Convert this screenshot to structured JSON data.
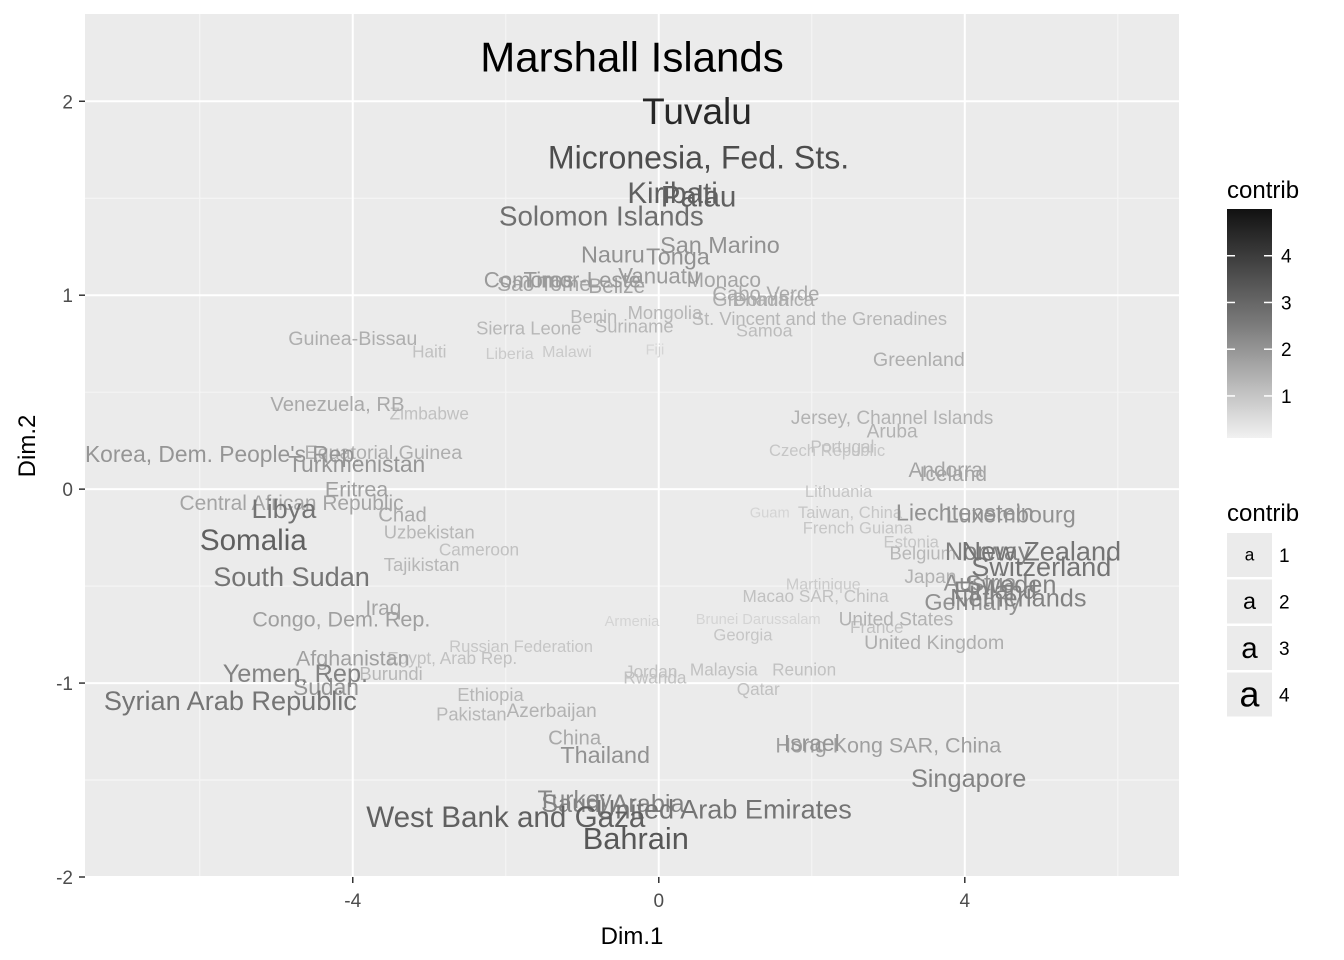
{
  "chart_data": {
    "type": "scatter",
    "xlabel": "Dim.1",
    "ylabel": "Dim.2",
    "xlim": [
      -7.5,
      6.8
    ],
    "ylim": [
      -2.0,
      2.45
    ],
    "x_ticks": [
      "-4",
      "0",
      "4"
    ],
    "y_ticks": [
      "2",
      "1",
      "0",
      "-1",
      "-2"
    ],
    "grid": true,
    "legend": {
      "position": "right",
      "colorbar": {
        "title": "contrib",
        "ticks": [
          "4",
          "3",
          "2",
          "1"
        ]
      },
      "size": {
        "title": "contrib",
        "key_glyph": "a",
        "labels": [
          "1",
          "2",
          "3",
          "4"
        ]
      }
    },
    "points": [
      {
        "label": "Marshall Islands",
        "x": -0.35,
        "y": 2.23,
        "contrib": 5.0
      },
      {
        "label": "Tuvalu",
        "x": 0.5,
        "y": 1.95,
        "contrib": 4.2
      },
      {
        "label": "Micronesia, Fed. Sts.",
        "x": 0.52,
        "y": 1.71,
        "contrib": 3.4
      },
      {
        "label": "Kiribati",
        "x": 0.18,
        "y": 1.53,
        "contrib": 3.0
      },
      {
        "label": "Palau",
        "x": 0.52,
        "y": 1.51,
        "contrib": 3.0
      },
      {
        "label": "Solomon Islands",
        "x": -0.75,
        "y": 1.41,
        "contrib": 2.7
      },
      {
        "label": "San Marino",
        "x": 0.8,
        "y": 1.26,
        "contrib": 2.0
      },
      {
        "label": "Nauru",
        "x": -0.6,
        "y": 1.21,
        "contrib": 2.0
      },
      {
        "label": "Tonga",
        "x": 0.25,
        "y": 1.2,
        "contrib": 2.0
      },
      {
        "label": "Timor-Leste",
        "x": -1.0,
        "y": 1.08,
        "contrib": 1.8
      },
      {
        "label": "Comoros",
        "x": -1.7,
        "y": 1.08,
        "contrib": 1.8
      },
      {
        "label": "Vanuatu",
        "x": 0.0,
        "y": 1.1,
        "contrib": 1.8
      },
      {
        "label": "Sao Tome",
        "x": -1.5,
        "y": 1.06,
        "contrib": 1.6
      },
      {
        "label": "Belize",
        "x": -0.55,
        "y": 1.05,
        "contrib": 1.6
      },
      {
        "label": "Monaco",
        "x": 0.85,
        "y": 1.08,
        "contrib": 1.6
      },
      {
        "label": "Cabo Verde",
        "x": 1.4,
        "y": 1.01,
        "contrib": 1.5
      },
      {
        "label": "Grenada",
        "x": 1.2,
        "y": 0.98,
        "contrib": 1.4
      },
      {
        "label": "Dominica",
        "x": 1.5,
        "y": 0.98,
        "contrib": 1.4
      },
      {
        "label": "Sierra Leone",
        "x": -1.7,
        "y": 0.83,
        "contrib": 1.2
      },
      {
        "label": "Suriname",
        "x": -0.32,
        "y": 0.84,
        "contrib": 1.2
      },
      {
        "label": "Benin",
        "x": -0.85,
        "y": 0.89,
        "contrib": 1.2
      },
      {
        "label": "Mongolia",
        "x": 0.08,
        "y": 0.91,
        "contrib": 1.2
      },
      {
        "label": "St. Vincent and the Grenadines",
        "x": 2.1,
        "y": 0.88,
        "contrib": 1.2
      },
      {
        "label": "Samoa",
        "x": 1.38,
        "y": 0.82,
        "contrib": 1.1
      },
      {
        "label": "Guinea-Bissau",
        "x": -4.0,
        "y": 0.78,
        "contrib": 1.4
      },
      {
        "label": "Haiti",
        "x": -3.0,
        "y": 0.71,
        "contrib": 1.0
      },
      {
        "label": "Liberia",
        "x": -1.95,
        "y": 0.7,
        "contrib": 0.8
      },
      {
        "label": "Malawi",
        "x": -1.2,
        "y": 0.71,
        "contrib": 0.8
      },
      {
        "label": "Fiji",
        "x": -0.05,
        "y": 0.72,
        "contrib": 0.6
      },
      {
        "label": "Greenland",
        "x": 3.4,
        "y": 0.67,
        "contrib": 1.4
      },
      {
        "label": "Venezuela, RB",
        "x": -4.2,
        "y": 0.44,
        "contrib": 1.5
      },
      {
        "label": "Zimbabwe",
        "x": -3.0,
        "y": 0.39,
        "contrib": 1.0
      },
      {
        "label": "Jersey, Channel Islands",
        "x": 3.05,
        "y": 0.37,
        "contrib": 1.3
      },
      {
        "label": "Aruba",
        "x": 3.05,
        "y": 0.3,
        "contrib": 1.3
      },
      {
        "label": "Portugal",
        "x": 2.4,
        "y": 0.22,
        "contrib": 1.0
      },
      {
        "label": "Czech Republic",
        "x": 2.2,
        "y": 0.2,
        "contrib": 0.9
      },
      {
        "label": "Korea, Dem. People's Rep.",
        "x": -5.7,
        "y": 0.18,
        "contrib": 1.9
      },
      {
        "label": "Equatorial Guinea",
        "x": -3.6,
        "y": 0.19,
        "contrib": 1.4
      },
      {
        "label": "Turkmenistan",
        "x": -3.95,
        "y": 0.13,
        "contrib": 1.9
      },
      {
        "label": "Andorra",
        "x": 3.75,
        "y": 0.1,
        "contrib": 1.6
      },
      {
        "label": "Iceland",
        "x": 3.85,
        "y": 0.08,
        "contrib": 1.6
      },
      {
        "label": "Eritrea",
        "x": -3.95,
        "y": 0.0,
        "contrib": 1.7
      },
      {
        "label": "Lithuania",
        "x": 2.35,
        "y": -0.01,
        "contrib": 0.9
      },
      {
        "label": "Central African Republic",
        "x": -4.8,
        "y": -0.07,
        "contrib": 1.6
      },
      {
        "label": "Libya",
        "x": -4.9,
        "y": -0.1,
        "contrib": 2.6
      },
      {
        "label": "Chad",
        "x": -3.35,
        "y": -0.13,
        "contrib": 1.5
      },
      {
        "label": "Liechtenstein",
        "x": 4.0,
        "y": -0.12,
        "contrib": 2.0
      },
      {
        "label": "Luxembourg",
        "x": 4.6,
        "y": -0.13,
        "contrib": 2.0
      },
      {
        "label": "Taiwan, China",
        "x": 2.5,
        "y": -0.12,
        "contrib": 0.9
      },
      {
        "label": "Guam",
        "x": 1.45,
        "y": -0.12,
        "contrib": 0.6
      },
      {
        "label": "Somalia",
        "x": -5.3,
        "y": -0.26,
        "contrib": 3.0
      },
      {
        "label": "Uzbekistan",
        "x": -3.0,
        "y": -0.22,
        "contrib": 1.2
      },
      {
        "label": "French Guiana",
        "x": 2.6,
        "y": -0.2,
        "contrib": 0.9
      },
      {
        "label": "Estonia",
        "x": 3.3,
        "y": -0.27,
        "contrib": 0.9
      },
      {
        "label": "Belgium",
        "x": 3.45,
        "y": -0.33,
        "contrib": 1.2
      },
      {
        "label": "New Zealand",
        "x": 5.0,
        "y": -0.32,
        "contrib": 2.6
      },
      {
        "label": "Norway",
        "x": 4.3,
        "y": -0.32,
        "contrib": 2.3
      },
      {
        "label": "Switzerland",
        "x": 5.0,
        "y": -0.4,
        "contrib": 2.6
      },
      {
        "label": "Cameroon",
        "x": -2.35,
        "y": -0.31,
        "contrib": 1.0
      },
      {
        "label": "Tajikistan",
        "x": -3.1,
        "y": -0.39,
        "contrib": 1.2
      },
      {
        "label": "Japan",
        "x": 3.55,
        "y": -0.45,
        "contrib": 1.3
      },
      {
        "label": "Austria",
        "x": 4.2,
        "y": -0.48,
        "contrib": 2.0
      },
      {
        "label": "Sweden",
        "x": 4.6,
        "y": -0.49,
        "contrib": 2.3
      },
      {
        "label": "Finland",
        "x": 4.4,
        "y": -0.52,
        "contrib": 2.3
      },
      {
        "label": "Netherlands",
        "x": 4.7,
        "y": -0.56,
        "contrib": 2.3
      },
      {
        "label": "Germany",
        "x": 4.1,
        "y": -0.58,
        "contrib": 2.0
      },
      {
        "label": "Martinique",
        "x": 2.15,
        "y": -0.49,
        "contrib": 0.8
      },
      {
        "label": "Macao SAR, China",
        "x": 2.05,
        "y": -0.55,
        "contrib": 1.0
      },
      {
        "label": "South Sudan",
        "x": -4.8,
        "y": -0.45,
        "contrib": 2.6
      },
      {
        "label": "Iraq",
        "x": -3.6,
        "y": -0.61,
        "contrib": 1.6
      },
      {
        "label": "Congo, Dem. Rep.",
        "x": -4.15,
        "y": -0.67,
        "contrib": 1.7
      },
      {
        "label": "United States",
        "x": 3.1,
        "y": -0.67,
        "contrib": 1.3
      },
      {
        "label": "France",
        "x": 2.85,
        "y": -0.71,
        "contrib": 1.0
      },
      {
        "label": "United Kingdom",
        "x": 3.6,
        "y": -0.79,
        "contrib": 1.4
      },
      {
        "label": "Brunei Darussalam",
        "x": 1.3,
        "y": -0.67,
        "contrib": 0.6
      },
      {
        "label": "Armenia",
        "x": -0.35,
        "y": -0.68,
        "contrib": 0.6
      },
      {
        "label": "Georgia",
        "x": 1.1,
        "y": -0.75,
        "contrib": 0.9
      },
      {
        "label": "Russian Federation",
        "x": -1.8,
        "y": -0.81,
        "contrib": 0.9
      },
      {
        "label": "Afghanistan",
        "x": -4.0,
        "y": -0.87,
        "contrib": 1.7
      },
      {
        "label": "Egypt, Arab Rep.",
        "x": -2.7,
        "y": -0.87,
        "contrib": 1.0
      },
      {
        "label": "Yemen, Rep.",
        "x": -4.75,
        "y": -0.95,
        "contrib": 2.3
      },
      {
        "label": "Burundi",
        "x": -3.5,
        "y": -0.95,
        "contrib": 1.2
      },
      {
        "label": "Sudan",
        "x": -4.35,
        "y": -1.02,
        "contrib": 1.9
      },
      {
        "label": "Jordan",
        "x": -0.1,
        "y": -0.94,
        "contrib": 1.0
      },
      {
        "label": "Malaysia",
        "x": 0.85,
        "y": -0.93,
        "contrib": 1.0
      },
      {
        "label": "Reunion",
        "x": 1.9,
        "y": -0.93,
        "contrib": 1.0
      },
      {
        "label": "Rwanda",
        "x": -0.05,
        "y": -0.97,
        "contrib": 1.0
      },
      {
        "label": "Qatar",
        "x": 1.3,
        "y": -1.03,
        "contrib": 1.0
      },
      {
        "label": "Syrian Arab Republic",
        "x": -5.6,
        "y": -1.09,
        "contrib": 2.6
      },
      {
        "label": "Ethiopia",
        "x": -2.2,
        "y": -1.06,
        "contrib": 1.2
      },
      {
        "label": "Azerbaijan",
        "x": -1.4,
        "y": -1.14,
        "contrib": 1.3
      },
      {
        "label": "Pakistan",
        "x": -2.45,
        "y": -1.16,
        "contrib": 1.2
      },
      {
        "label": "China",
        "x": -1.1,
        "y": -1.28,
        "contrib": 1.5
      },
      {
        "label": "Thailand",
        "x": -0.7,
        "y": -1.37,
        "contrib": 2.0
      },
      {
        "label": "Israel",
        "x": 2.0,
        "y": -1.31,
        "contrib": 1.9
      },
      {
        "label": "Hong Kong SAR, China",
        "x": 3.0,
        "y": -1.32,
        "contrib": 1.7
      },
      {
        "label": "Singapore",
        "x": 4.05,
        "y": -1.49,
        "contrib": 2.3
      },
      {
        "label": "Turkey",
        "x": -1.1,
        "y": -1.6,
        "contrib": 2.2
      },
      {
        "label": "Saudi Arabia",
        "x": -0.6,
        "y": -1.62,
        "contrib": 2.3
      },
      {
        "label": "United Arab Emirates",
        "x": 0.85,
        "y": -1.65,
        "contrib": 2.6
      },
      {
        "label": "West Bank and Gaza",
        "x": -2.0,
        "y": -1.69,
        "contrib": 3.0
      },
      {
        "label": "Bahrain",
        "x": -0.3,
        "y": -1.8,
        "contrib": 3.2
      }
    ]
  }
}
